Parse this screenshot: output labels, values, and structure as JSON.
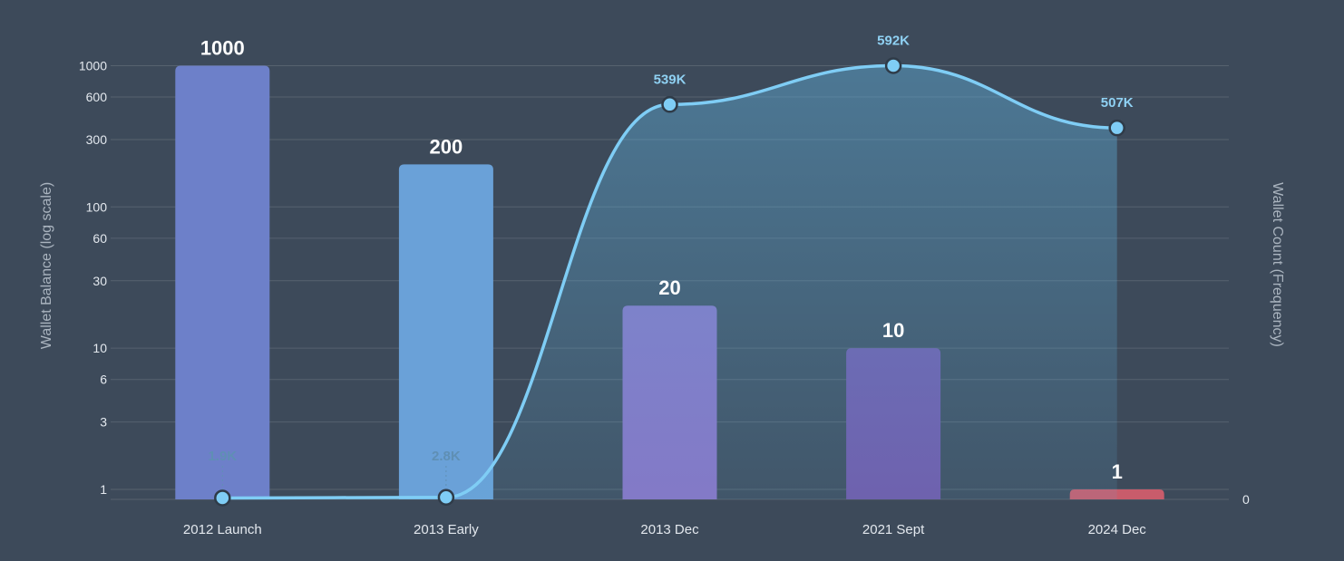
{
  "colors": {
    "background": "#3d4a5a",
    "grid": "#56626f",
    "line": "#7fcdf5",
    "area": "#5fb0dc"
  },
  "chart_data": {
    "type": "bar",
    "categories": [
      "2012 Launch",
      "2013 Early",
      "2013 Dec",
      "2021 Sept",
      "2024 Dec"
    ],
    "ylabel": "Wallet Balance (log scale)",
    "y2label": "Wallet Count (Frequency)",
    "yscale": "log",
    "ylim": [
      0.85,
      1100
    ],
    "yticks": [
      1,
      3,
      6,
      10,
      30,
      60,
      100,
      300,
      600,
      1000
    ],
    "y2ticks": [
      0
    ],
    "y2lim": [
      0,
      600000
    ],
    "grid": true,
    "series": [
      {
        "type": "bar",
        "values": [
          1000,
          200,
          20,
          10,
          1
        ],
        "labels": [
          "1000",
          "200",
          "20",
          "10",
          "1"
        ],
        "colors": [
          "#6d80c9",
          "#6aa1d8",
          "#8872c4",
          "#7057a8",
          "#c95c6b"
        ]
      },
      {
        "type": "line",
        "axis": "right",
        "values": [
          1900,
          2800,
          539000,
          592000,
          507000
        ],
        "labels": [
          "1.9K",
          "2.8K",
          "539K",
          "592K",
          "507K"
        ],
        "label_colors": [
          "#5f8fb4",
          "#5f8fb4",
          "#8fd1f3",
          "#8fd1f3",
          "#8fd1f3"
        ]
      }
    ]
  }
}
